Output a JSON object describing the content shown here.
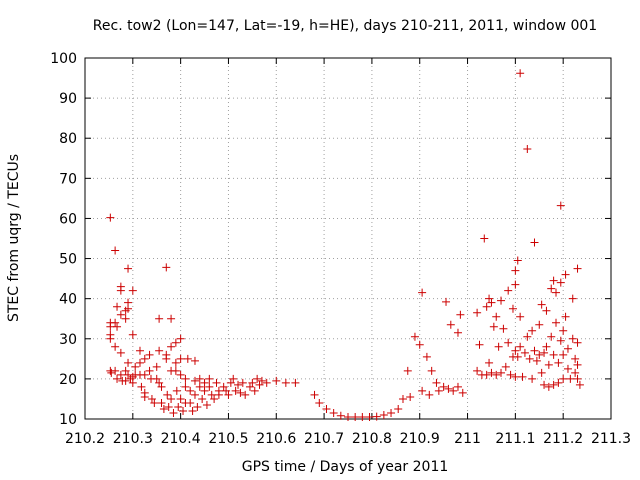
{
  "chart_data": {
    "type": "scatter",
    "title": "Rec. tow2 (Lon=147, Lat=-19, h=HE), days 210-211, 2011, window 001",
    "xlabel": "GPS time / Days of year 2011",
    "ylabel": "STEC from uqrg / TECUs",
    "xlim": [
      210.2,
      211.3
    ],
    "ylim": [
      10,
      100
    ],
    "x_ticks": [
      "210.2",
      "210.3",
      "210.4",
      "210.5",
      "210.6",
      "210.7",
      "210.8",
      "210.9",
      "211",
      "211.1",
      "211.2",
      "211.3"
    ],
    "x_tick_values": [
      210.2,
      210.3,
      210.4,
      210.5,
      210.6,
      210.7,
      210.8,
      210.9,
      211.0,
      211.1,
      211.2,
      211.3
    ],
    "y_ticks": [
      "10",
      "20",
      "30",
      "40",
      "50",
      "60",
      "70",
      "80",
      "90",
      "100"
    ],
    "y_tick_values": [
      10,
      20,
      30,
      40,
      50,
      60,
      70,
      80,
      90,
      100
    ],
    "grid": true,
    "legend": "none",
    "marker_color": "#cc0000",
    "points": [
      [
        210.253,
        60.2
      ],
      [
        210.253,
        34.0
      ],
      [
        210.253,
        33.0
      ],
      [
        210.253,
        31.0
      ],
      [
        210.253,
        30.0
      ],
      [
        210.253,
        22.0
      ],
      [
        210.255,
        21.5
      ],
      [
        210.263,
        52.0
      ],
      [
        210.263,
        34.0
      ],
      [
        210.263,
        28.0
      ],
      [
        210.263,
        22.0
      ],
      [
        210.267,
        38.0
      ],
      [
        210.267,
        33.0
      ],
      [
        210.267,
        20.0
      ],
      [
        210.275,
        43.0
      ],
      [
        210.275,
        42.0
      ],
      [
        210.275,
        36.0
      ],
      [
        210.275,
        26.5
      ],
      [
        210.275,
        21.0
      ],
      [
        210.278,
        19.5
      ],
      [
        210.285,
        37.0
      ],
      [
        210.285,
        35.0
      ],
      [
        210.285,
        22.0
      ],
      [
        210.285,
        19.5
      ],
      [
        210.29,
        47.5
      ],
      [
        210.29,
        39.0
      ],
      [
        210.29,
        37.5
      ],
      [
        210.29,
        24.0
      ],
      [
        210.29,
        21.0
      ],
      [
        210.295,
        20.0
      ],
      [
        210.3,
        42.0
      ],
      [
        210.3,
        31.0
      ],
      [
        210.3,
        20.5
      ],
      [
        210.3,
        19.0
      ],
      [
        210.305,
        23.0
      ],
      [
        210.305,
        21.0
      ],
      [
        210.315,
        27.0
      ],
      [
        210.315,
        24.0
      ],
      [
        210.315,
        21.0
      ],
      [
        210.318,
        18.0
      ],
      [
        210.325,
        25.0
      ],
      [
        210.325,
        21.0
      ],
      [
        210.325,
        16.5
      ],
      [
        210.325,
        15.5
      ],
      [
        210.335,
        26.0
      ],
      [
        210.335,
        22.0
      ],
      [
        210.338,
        20.0
      ],
      [
        210.34,
        15.0
      ],
      [
        210.345,
        14.0
      ],
      [
        210.35,
        23.0
      ],
      [
        210.35,
        20.0
      ],
      [
        210.355,
        35.0
      ],
      [
        210.355,
        27.0
      ],
      [
        210.355,
        19.0
      ],
      [
        210.36,
        18.0
      ],
      [
        210.36,
        14.0
      ],
      [
        210.365,
        12.5
      ],
      [
        210.37,
        47.8
      ],
      [
        210.37,
        26.0
      ],
      [
        210.37,
        25.0
      ],
      [
        210.372,
        16.0
      ],
      [
        210.375,
        13.0
      ],
      [
        210.38,
        35.0
      ],
      [
        210.38,
        28.0
      ],
      [
        210.38,
        22.0
      ],
      [
        210.38,
        15.0
      ],
      [
        210.385,
        11.5
      ],
      [
        210.39,
        29.0
      ],
      [
        210.39,
        24.0
      ],
      [
        210.39,
        22.0
      ],
      [
        210.392,
        17.0
      ],
      [
        210.395,
        13.0
      ],
      [
        210.4,
        30.0
      ],
      [
        210.4,
        25.0
      ],
      [
        210.4,
        21.0
      ],
      [
        210.4,
        15.0
      ],
      [
        210.405,
        12.0
      ],
      [
        210.41,
        20.0
      ],
      [
        210.41,
        18.0
      ],
      [
        210.41,
        14.0
      ],
      [
        210.415,
        25.0
      ],
      [
        210.42,
        17.0
      ],
      [
        210.42,
        14.0
      ],
      [
        210.425,
        12.0
      ],
      [
        210.43,
        24.5
      ],
      [
        210.43,
        19.5
      ],
      [
        210.43,
        16.0
      ],
      [
        210.435,
        13.0
      ],
      [
        210.44,
        20.0
      ],
      [
        210.44,
        18.0
      ],
      [
        210.445,
        15.0
      ],
      [
        210.45,
        19.0
      ],
      [
        210.45,
        17.0
      ],
      [
        210.455,
        13.5
      ],
      [
        210.46,
        20.0
      ],
      [
        210.46,
        18.0
      ],
      [
        210.465,
        16.0
      ],
      [
        210.47,
        15.0
      ],
      [
        210.475,
        19.0
      ],
      [
        210.48,
        17.0
      ],
      [
        210.48,
        16.0
      ],
      [
        210.49,
        18.0
      ],
      [
        210.495,
        17.0
      ],
      [
        210.5,
        16.0
      ],
      [
        210.505,
        19.0
      ],
      [
        210.51,
        20.0
      ],
      [
        210.515,
        17.0
      ],
      [
        210.52,
        18.5
      ],
      [
        210.525,
        16.5
      ],
      [
        210.53,
        19.0
      ],
      [
        210.535,
        16.0
      ],
      [
        210.545,
        18.0
      ],
      [
        210.55,
        19.0
      ],
      [
        210.555,
        17.0
      ],
      [
        210.56,
        20.0
      ],
      [
        210.565,
        18.5
      ],
      [
        210.57,
        19.5
      ],
      [
        210.58,
        19.0
      ],
      [
        210.6,
        19.5
      ],
      [
        210.62,
        19.0
      ],
      [
        210.64,
        19.0
      ],
      [
        210.68,
        16.0
      ],
      [
        210.69,
        14.0
      ],
      [
        210.705,
        12.5
      ],
      [
        210.72,
        11.5
      ],
      [
        210.735,
        10.8
      ],
      [
        210.75,
        10.5
      ],
      [
        210.765,
        10.5
      ],
      [
        210.78,
        10.5
      ],
      [
        210.795,
        10.5
      ],
      [
        210.81,
        10.6
      ],
      [
        210.825,
        11.0
      ],
      [
        210.84,
        11.5
      ],
      [
        210.855,
        12.5
      ],
      [
        210.865,
        15.0
      ],
      [
        210.875,
        22.0
      ],
      [
        210.88,
        15.5
      ],
      [
        210.89,
        30.5
      ],
      [
        210.9,
        28.5
      ],
      [
        210.905,
        41.5
      ],
      [
        210.905,
        17.0
      ],
      [
        210.915,
        25.5
      ],
      [
        210.92,
        16.0
      ],
      [
        210.925,
        22.0
      ],
      [
        210.935,
        19.0
      ],
      [
        210.94,
        17.0
      ],
      [
        210.95,
        18.0
      ],
      [
        210.955,
        39.2
      ],
      [
        210.96,
        17.5
      ],
      [
        210.965,
        33.5
      ],
      [
        210.97,
        17.0
      ],
      [
        210.98,
        31.5
      ],
      [
        210.98,
        18.0
      ],
      [
        210.985,
        36.0
      ],
      [
        210.99,
        16.5
      ],
      [
        211.02,
        36.5
      ],
      [
        211.02,
        22.0
      ],
      [
        211.025,
        28.5
      ],
      [
        211.03,
        21.0
      ],
      [
        211.035,
        55.0
      ],
      [
        211.04,
        38.0
      ],
      [
        211.04,
        21.0
      ],
      [
        211.045,
        40.0
      ],
      [
        211.045,
        24.0
      ],
      [
        211.05,
        21.5
      ],
      [
        211.05,
        39.0
      ],
      [
        211.055,
        33.0
      ],
      [
        211.06,
        21.0
      ],
      [
        211.06,
        35.5
      ],
      [
        211.065,
        28.0
      ],
      [
        211.07,
        39.5
      ],
      [
        211.07,
        21.5
      ],
      [
        211.075,
        32.5
      ],
      [
        211.08,
        23.0
      ],
      [
        211.085,
        42.0
      ],
      [
        211.085,
        29.0
      ],
      [
        211.09,
        21.0
      ],
      [
        211.095,
        37.5
      ],
      [
        211.095,
        25.5
      ],
      [
        211.1,
        47.0
      ],
      [
        211.1,
        43.5
      ],
      [
        211.1,
        27.0
      ],
      [
        211.1,
        20.5
      ],
      [
        211.105,
        49.5
      ],
      [
        211.105,
        25.5
      ],
      [
        211.11,
        96.2
      ],
      [
        211.11,
        35.5
      ],
      [
        211.11,
        28.0
      ],
      [
        211.115,
        20.5
      ],
      [
        211.12,
        26.5
      ],
      [
        211.125,
        77.3
      ],
      [
        211.125,
        30.5
      ],
      [
        211.13,
        25.0
      ],
      [
        211.135,
        32.0
      ],
      [
        211.135,
        20.0
      ],
      [
        211.14,
        54.0
      ],
      [
        211.14,
        27.0
      ],
      [
        211.145,
        24.5
      ],
      [
        211.15,
        26.0
      ],
      [
        211.15,
        33.5
      ],
      [
        211.155,
        38.5
      ],
      [
        211.155,
        21.5
      ],
      [
        211.16,
        26.5
      ],
      [
        211.16,
        18.5
      ],
      [
        211.165,
        37.0
      ],
      [
        211.165,
        28.0
      ],
      [
        211.17,
        23.5
      ],
      [
        211.17,
        18.0
      ],
      [
        211.175,
        42.5
      ],
      [
        211.175,
        30.5
      ],
      [
        211.18,
        44.5
      ],
      [
        211.18,
        26.0
      ],
      [
        211.18,
        18.5
      ],
      [
        211.185,
        41.5
      ],
      [
        211.185,
        34.0
      ],
      [
        211.19,
        24.0
      ],
      [
        211.19,
        19.0
      ],
      [
        211.195,
        63.2
      ],
      [
        211.195,
        44.0
      ],
      [
        211.195,
        29.5
      ],
      [
        211.2,
        32.0
      ],
      [
        211.2,
        26.0
      ],
      [
        211.2,
        20.0
      ],
      [
        211.205,
        46.0
      ],
      [
        211.205,
        35.5
      ],
      [
        211.21,
        27.5
      ],
      [
        211.21,
        22.5
      ],
      [
        211.215,
        20.0
      ],
      [
        211.22,
        40.0
      ],
      [
        211.22,
        30.0
      ],
      [
        211.225,
        25.0
      ],
      [
        211.225,
        21.5
      ],
      [
        211.23,
        47.5
      ],
      [
        211.23,
        29.0
      ],
      [
        211.23,
        23.5
      ],
      [
        211.23,
        20.0
      ],
      [
        211.235,
        18.5
      ]
    ]
  }
}
